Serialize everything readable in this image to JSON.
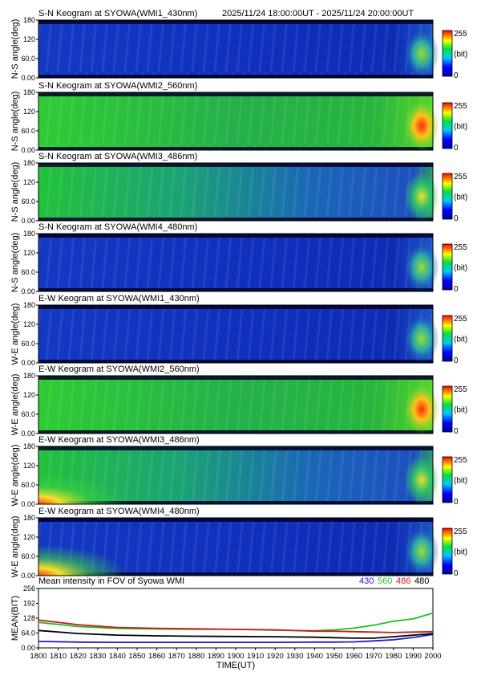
{
  "header": {
    "datetime_range": "2025/11/24 18:00:00UT - 2025/11/24 20:00:00UT"
  },
  "colors": {
    "series_430": "#1c1ccc",
    "series_560": "#1fbf1f",
    "series_486": "#cc1a1a",
    "series_480": "#000000"
  },
  "chart_data": [
    {
      "type": "heatmap",
      "title": "S-N Keogram at SYOWA(WMI1_430nm)",
      "ylabel": "N-S angle(deg)",
      "yticks": [
        "0.00",
        "60.0",
        "120",
        "180"
      ],
      "ylim": [
        0,
        180
      ],
      "colorbar": {
        "max_label": "255",
        "unit_label": "(bit)",
        "min_label": "0"
      },
      "intensity": "low"
    },
    {
      "type": "heatmap",
      "title": "S-N Keogram at SYOWA(WMI2_560nm)",
      "ylabel": "N-S angle(deg)",
      "yticks": [
        "0.00",
        "60.0",
        "120",
        "180"
      ],
      "ylim": [
        0,
        180
      ],
      "colorbar": {
        "max_label": "255",
        "unit_label": "(bit)",
        "min_label": "0"
      },
      "intensity": "high"
    },
    {
      "type": "heatmap",
      "title": "S-N Keogram at SYOWA(WMI3_486nm)",
      "ylabel": "N-S angle(deg)",
      "yticks": [
        "0.00",
        "60.0",
        "120",
        "180"
      ],
      "ylim": [
        0,
        180
      ],
      "colorbar": {
        "max_label": "255",
        "unit_label": "(bit)",
        "min_label": "0"
      },
      "intensity": "medium"
    },
    {
      "type": "heatmap",
      "title": "S-N Keogram at SYOWA(WMI4_480nm)",
      "ylabel": "N-S angle(deg)",
      "yticks": [
        "0.00",
        "60.0",
        "120",
        "180"
      ],
      "ylim": [
        0,
        180
      ],
      "colorbar": {
        "max_label": "255",
        "unit_label": "(bit)",
        "min_label": "0"
      },
      "intensity": "low"
    },
    {
      "type": "heatmap",
      "title": "E-W Keogram at SYOWA(WMI1_430nm)",
      "ylabel": "W-E angle(deg)",
      "yticks": [
        "0.00",
        "60.0",
        "120",
        "180"
      ],
      "ylim": [
        0,
        180
      ],
      "colorbar": {
        "max_label": "255",
        "unit_label": "(bit)",
        "min_label": "0"
      },
      "intensity": "low"
    },
    {
      "type": "heatmap",
      "title": "E-W Keogram at SYOWA(WMI2_560nm)",
      "ylabel": "W-E angle(deg)",
      "yticks": [
        "0.00",
        "60.0",
        "120",
        "180"
      ],
      "ylim": [
        0,
        180
      ],
      "colorbar": {
        "max_label": "255",
        "unit_label": "(bit)",
        "min_label": "0"
      },
      "intensity": "high"
    },
    {
      "type": "heatmap",
      "title": "E-W Keogram at SYOWA(WMI3_486nm)",
      "ylabel": "W-E angle(deg)",
      "yticks": [
        "0.00",
        "60.0",
        "120",
        "180"
      ],
      "ylim": [
        0,
        180
      ],
      "colorbar": {
        "max_label": "255",
        "unit_label": "(bit)",
        "min_label": "0"
      },
      "intensity": "medium"
    },
    {
      "type": "heatmap",
      "title": "E-W Keogram at SYOWA(WMI4_480nm)",
      "ylabel": "W-E angle(deg)",
      "yticks": [
        "0.00",
        "60.0",
        "120",
        "180"
      ],
      "ylim": [
        0,
        180
      ],
      "colorbar": {
        "max_label": "255",
        "unit_label": "(bit)",
        "min_label": "0"
      },
      "intensity": "low"
    },
    {
      "type": "line",
      "title": "Mean intensity in FOV of Syowa WMI",
      "xlabel": "TIME(UT)",
      "ylabel": "MEAN(BIT)",
      "xlim": [
        1800,
        2000
      ],
      "ylim": [
        0,
        256
      ],
      "xticks": [
        "1800",
        "1810",
        "1820",
        "1830",
        "1840",
        "1850",
        "1860",
        "1870",
        "1880",
        "1890",
        "1900",
        "1910",
        "1920",
        "1930",
        "1940",
        "1950",
        "1960",
        "1970",
        "1980",
        "1990",
        "2000"
      ],
      "yticks": [
        "0.00",
        "64.0",
        "128",
        "192",
        "256"
      ],
      "x": [
        1800,
        1820,
        1840,
        1860,
        1880,
        1900,
        1920,
        1940,
        1950,
        1960,
        1970,
        1980,
        1990,
        2000
      ],
      "series": [
        {
          "name": "430",
          "color": "#1c1ccc",
          "values": [
            28,
            25,
            24,
            24,
            24,
            24,
            24,
            25,
            25,
            26,
            30,
            35,
            45,
            58
          ]
        },
        {
          "name": "560",
          "color": "#1fbf1f",
          "values": [
            110,
            92,
            84,
            82,
            80,
            80,
            76,
            74,
            78,
            85,
            98,
            115,
            125,
            150
          ]
        },
        {
          "name": "486",
          "color": "#cc1a1a",
          "values": [
            120,
            100,
            88,
            84,
            82,
            80,
            78,
            72,
            72,
            70,
            68,
            66,
            68,
            70
          ]
        },
        {
          "name": "480",
          "color": "#000000",
          "values": [
            75,
            62,
            55,
            52,
            50,
            49,
            48,
            46,
            44,
            42,
            42,
            48,
            55,
            62
          ]
        }
      ]
    }
  ]
}
